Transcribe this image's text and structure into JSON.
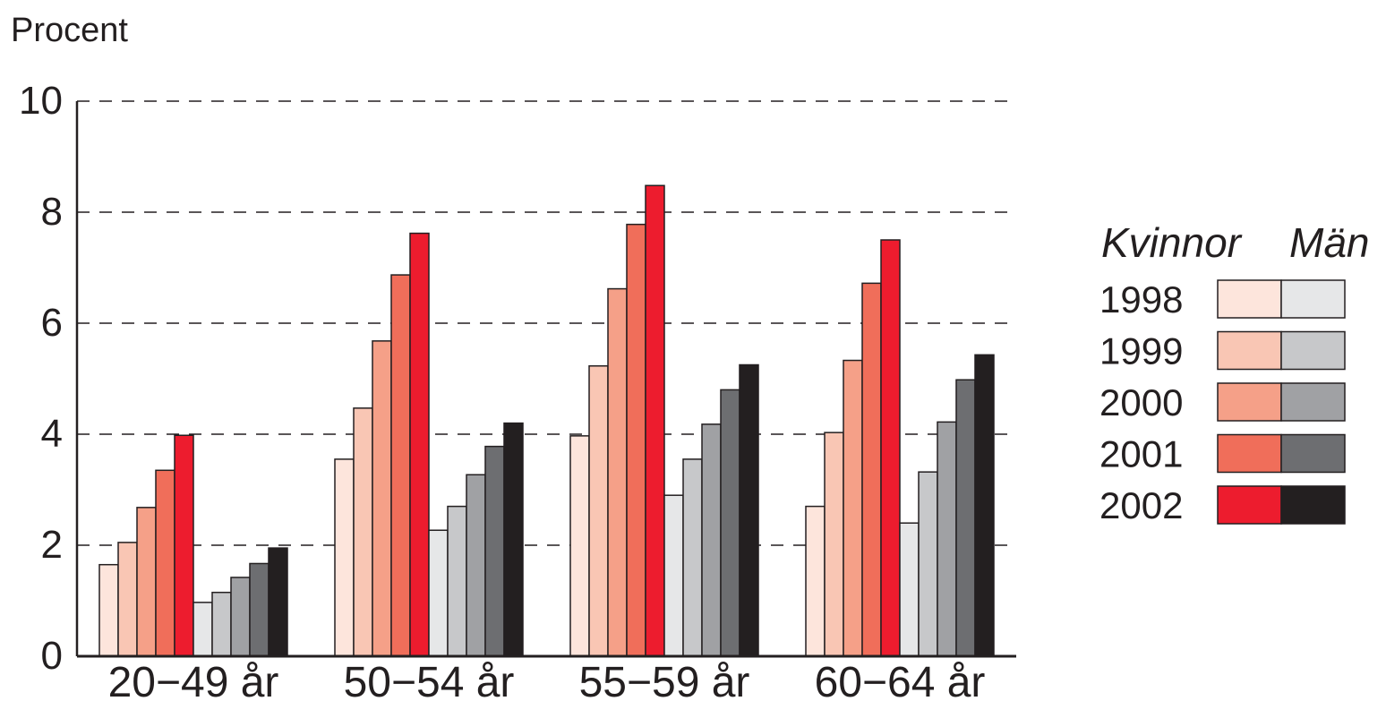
{
  "chart_data": {
    "type": "bar",
    "ylabel": "Procent",
    "ylim": [
      0,
      10
    ],
    "yticks": [
      0,
      2,
      4,
      6,
      8,
      10
    ],
    "grid": "dashed horizontal",
    "legend_position": "right",
    "categories": [
      "20−49 år",
      "50−54 år",
      "55−59 år",
      "60−64 år"
    ],
    "groups": [
      {
        "name": "Kvinnor",
        "series": [
          {
            "name": "1998",
            "color": "#fde5dc",
            "values": [
              1.65,
              3.55,
              3.97,
              2.7
            ]
          },
          {
            "name": "1999",
            "color": "#f9c6b4",
            "values": [
              2.05,
              4.47,
              5.23,
              4.03
            ]
          },
          {
            "name": "2000",
            "color": "#f5a088",
            "values": [
              2.68,
              5.68,
              6.62,
              5.33
            ]
          },
          {
            "name": "2001",
            "color": "#f06e5a",
            "values": [
              3.35,
              6.87,
              7.78,
              6.72
            ]
          },
          {
            "name": "2002",
            "color": "#ed1c2e",
            "values": [
              3.98,
              7.62,
              8.48,
              7.5
            ]
          }
        ]
      },
      {
        "name": "Män",
        "series": [
          {
            "name": "1998",
            "color": "#e6e7e8",
            "values": [
              0.97,
              2.27,
              2.9,
              2.4
            ]
          },
          {
            "name": "1999",
            "color": "#c7c8ca",
            "values": [
              1.15,
              2.7,
              3.55,
              3.32
            ]
          },
          {
            "name": "2000",
            "color": "#a0a1a4",
            "values": [
              1.42,
              3.27,
              4.18,
              4.22
            ]
          },
          {
            "name": "2001",
            "color": "#6d6e71",
            "values": [
              1.67,
              3.78,
              4.8,
              4.98
            ]
          },
          {
            "name": "2002",
            "color": "#231f20",
            "values": [
              1.95,
              4.2,
              5.25,
              5.43
            ]
          }
        ]
      }
    ],
    "legend": {
      "headers": [
        "Kvinnor",
        "Män"
      ],
      "years": [
        "1998",
        "1999",
        "2000",
        "2001",
        "2002"
      ]
    }
  }
}
